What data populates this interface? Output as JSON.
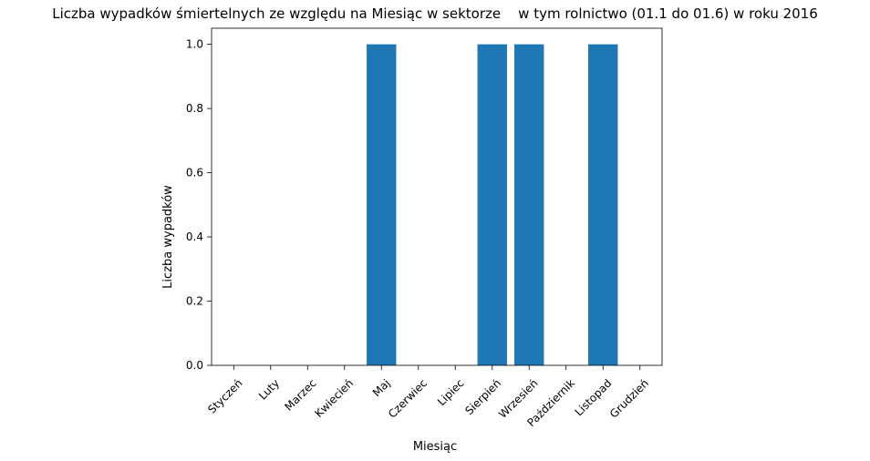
{
  "chart_data": {
    "type": "bar",
    "title": "Liczba wypadków śmiertelnych ze względu na Miesiąc w sektorze    w tym rolnictwo (01.1 do 01.6) w roku 2016",
    "xlabel": "Miesiąc",
    "ylabel": "Liczba wypadków",
    "categories": [
      "Styczeń",
      "Luty",
      "Marzec",
      "Kwiecień",
      "Maj",
      "Czerwiec",
      "Lipiec",
      "Sierpień",
      "Wrzesień",
      "Październik",
      "Listopad",
      "Grudzień"
    ],
    "values": [
      0,
      0,
      0,
      0,
      1,
      0,
      0,
      1,
      1,
      0,
      1,
      0
    ],
    "ylim": [
      0,
      1.05
    ],
    "yticks": [
      0.0,
      0.2,
      0.4,
      0.6,
      0.8,
      1.0
    ],
    "ytick_labels": [
      "0.0",
      "0.2",
      "0.4",
      "0.6",
      "0.8",
      "1.0"
    ],
    "bar_color": "#1f77b4",
    "grid": false,
    "legend": "none"
  }
}
